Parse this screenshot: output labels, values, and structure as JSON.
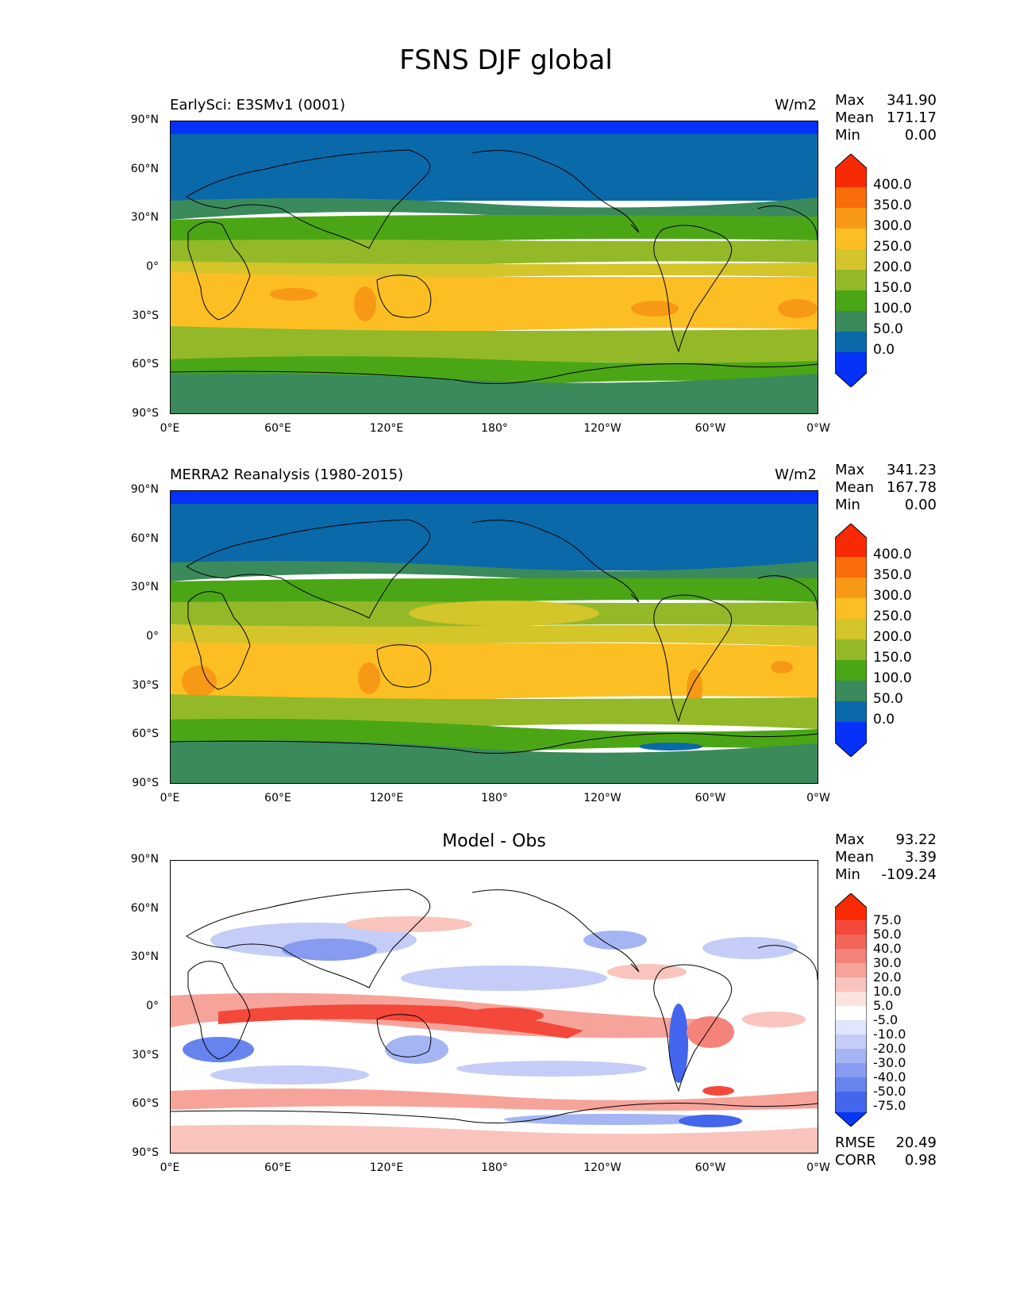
{
  "figure": {
    "title": "FSNS DJF global"
  },
  "axes": {
    "lat_ticks": [
      "90°N",
      "60°N",
      "30°N",
      "0°",
      "30°S",
      "60°S",
      "90°S"
    ],
    "lon_ticks": [
      "0°E",
      "60°E",
      "120°E",
      "180°",
      "120°W",
      "60°W",
      "0°W"
    ]
  },
  "panels": [
    {
      "id": "model",
      "left_title": "EarlySci: E3SMv1 (0001)",
      "right_title": "W/m2",
      "center_title": "",
      "stats": [
        {
          "label": "Max",
          "value": "341.90"
        },
        {
          "label": "Mean",
          "value": "171.17"
        },
        {
          "label": "Min",
          "value": "0.00"
        }
      ],
      "colorbar_labels": [
        "400.0",
        "350.0",
        "300.0",
        "250.0",
        "200.0",
        "150.0",
        "100.0",
        "50.0",
        "0.0"
      ],
      "colorbar_colors": [
        "#f72a04",
        "#f96d0a",
        "#f89916",
        "#fbbf24",
        "#d3c52a",
        "#93b928",
        "#4ba615",
        "#3b8a5c",
        "#0a69a8",
        "#0531f9"
      ]
    },
    {
      "id": "obs",
      "left_title": "MERRA2 Reanalysis (1980-2015)",
      "right_title": "W/m2",
      "center_title": "",
      "stats": [
        {
          "label": "Max",
          "value": "341.23"
        },
        {
          "label": "Mean",
          "value": "167.78"
        },
        {
          "label": "Min",
          "value": "0.00"
        }
      ],
      "colorbar_labels": [
        "400.0",
        "350.0",
        "300.0",
        "250.0",
        "200.0",
        "150.0",
        "100.0",
        "50.0",
        "0.0"
      ],
      "colorbar_colors": [
        "#f72a04",
        "#f96d0a",
        "#f89916",
        "#fbbf24",
        "#d3c52a",
        "#93b928",
        "#4ba615",
        "#3b8a5c",
        "#0a69a8",
        "#0531f9"
      ]
    },
    {
      "id": "diff",
      "left_title": "",
      "right_title": "",
      "center_title": "Model - Obs",
      "stats": [
        {
          "label": "Max",
          "value": "93.22"
        },
        {
          "label": "Mean",
          "value": "3.39"
        },
        {
          "label": "Min",
          "value": "-109.24"
        }
      ],
      "extra_stats": [
        {
          "label": "RMSE",
          "value": "20.49"
        },
        {
          "label": "CORR",
          "value": "0.98"
        }
      ],
      "colorbar_labels": [
        "75.0",
        "50.0",
        "40.0",
        "30.0",
        "20.0",
        "10.0",
        "5.0",
        "-5.0",
        "-10.0",
        "-20.0",
        "-30.0",
        "-40.0",
        "-50.0",
        "-75.0"
      ],
      "colorbar_colors": [
        "#fa2a05",
        "#f4483a",
        "#f26559",
        "#f4837a",
        "#f6a39a",
        "#f9c4bd",
        "#fde3df",
        "#ffffff",
        "#e0e6fb",
        "#c3cdf7",
        "#a5b5f3",
        "#879cf0",
        "#6783ee",
        "#4366ed",
        "#0537f5"
      ]
    }
  ]
}
